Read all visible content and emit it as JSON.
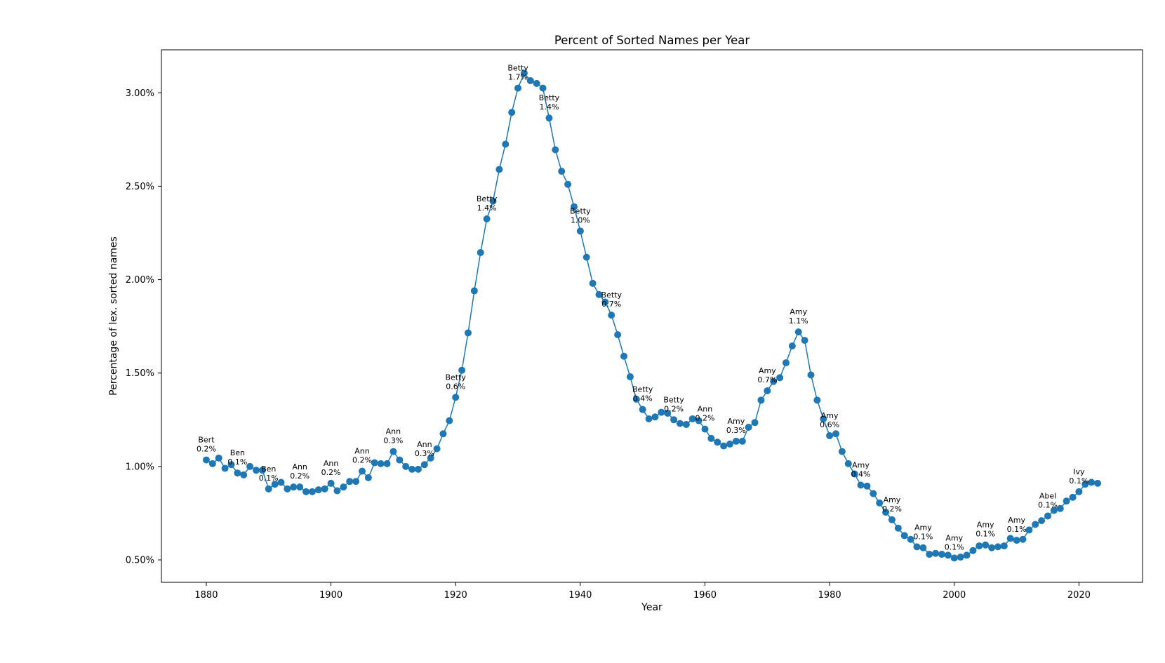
{
  "chart_data": {
    "type": "line",
    "title": "Percent of Sorted Names per Year",
    "xlabel": "Year",
    "ylabel": "Percentage of lex. sorted names",
    "xlim": [
      1872.8,
      2030.2
    ],
    "ylim": [
      0.38,
      3.23
    ],
    "x_ticks": [
      1880,
      1900,
      1920,
      1940,
      1960,
      1980,
      2000,
      2020
    ],
    "y_ticks": [
      0.5,
      1.0,
      1.5,
      2.0,
      2.5,
      3.0
    ],
    "y_tick_labels": [
      "0.50%",
      "1.00%",
      "1.50%",
      "2.00%",
      "2.50%",
      "3.00%"
    ],
    "grid": false,
    "marker": "circle",
    "line_color": "#1f77b4",
    "series": [
      {
        "x": [
          1880,
          1881,
          1882,
          1883,
          1884,
          1885,
          1886,
          1887,
          1888,
          1889,
          1890,
          1891,
          1892,
          1893,
          1894,
          1895,
          1896,
          1897,
          1898,
          1899,
          1900,
          1901,
          1902,
          1903,
          1904,
          1905,
          1906,
          1907,
          1908,
          1909,
          1910,
          1911,
          1912,
          1913,
          1914,
          1915,
          1916,
          1917,
          1918,
          1919,
          1920,
          1921,
          1922,
          1923,
          1924,
          1925,
          1926,
          1927,
          1928,
          1929,
          1930,
          1931,
          1932,
          1933,
          1934,
          1935,
          1936,
          1937,
          1938,
          1939,
          1940,
          1941,
          1942,
          1943,
          1944,
          1945,
          1946,
          1947,
          1948,
          1949,
          1950,
          1951,
          1952,
          1953,
          1954,
          1955,
          1956,
          1957,
          1958,
          1959,
          1960,
          1961,
          1962,
          1963,
          1964,
          1965,
          1966,
          1967,
          1968,
          1969,
          1970,
          1971,
          1972,
          1973,
          1974,
          1975,
          1976,
          1977,
          1978,
          1979,
          1980,
          1981,
          1982,
          1983,
          1984,
          1985,
          1986,
          1987,
          1988,
          1989,
          1990,
          1991,
          1992,
          1993,
          1994,
          1995,
          1996,
          1997,
          1998,
          1999,
          2000,
          2001,
          2002,
          2003,
          2004,
          2005,
          2006,
          2007,
          2008,
          2009,
          2010,
          2011,
          2012,
          2013,
          2014,
          2015,
          2016,
          2017,
          2018,
          2019,
          2020,
          2021,
          2022,
          2023
        ],
        "y": [
          1.035,
          1.015,
          1.045,
          0.99,
          1.01,
          0.965,
          0.955,
          1.0,
          0.98,
          0.98,
          0.88,
          0.905,
          0.915,
          0.88,
          0.89,
          0.89,
          0.865,
          0.865,
          0.875,
          0.88,
          0.91,
          0.87,
          0.89,
          0.92,
          0.92,
          0.975,
          0.94,
          1.02,
          1.015,
          1.015,
          1.08,
          1.035,
          1.0,
          0.985,
          0.985,
          1.01,
          1.045,
          1.095,
          1.175,
          1.245,
          1.37,
          1.515,
          1.715,
          1.94,
          2.145,
          2.325,
          2.42,
          2.59,
          2.725,
          2.895,
          3.025,
          3.105,
          3.065,
          3.05,
          3.025,
          2.865,
          2.695,
          2.58,
          2.51,
          2.39,
          2.26,
          2.12,
          1.98,
          1.92,
          1.88,
          1.81,
          1.705,
          1.59,
          1.48,
          1.36,
          1.305,
          1.255,
          1.265,
          1.29,
          1.285,
          1.25,
          1.23,
          1.225,
          1.255,
          1.245,
          1.2,
          1.15,
          1.13,
          1.11,
          1.12,
          1.135,
          1.135,
          1.21,
          1.235,
          1.355,
          1.405,
          1.455,
          1.475,
          1.555,
          1.645,
          1.72,
          1.675,
          1.49,
          1.355,
          1.255,
          1.165,
          1.175,
          1.08,
          1.015,
          0.96,
          0.9,
          0.895,
          0.855,
          0.805,
          0.755,
          0.715,
          0.67,
          0.63,
          0.61,
          0.57,
          0.565,
          0.53,
          0.535,
          0.53,
          0.525,
          0.51,
          0.515,
          0.525,
          0.55,
          0.575,
          0.58,
          0.565,
          0.57,
          0.575,
          0.615,
          0.605,
          0.61,
          0.66,
          0.69,
          0.71,
          0.735,
          0.765,
          0.775,
          0.815,
          0.835,
          0.865,
          0.905,
          0.915,
          0.91
        ]
      }
    ],
    "annotations": [
      {
        "name": "Bert",
        "pct": "0.2%",
        "x": 1880,
        "y": 1.035
      },
      {
        "name": "Ben",
        "pct": "0.1%",
        "x": 1885,
        "y": 0.965
      },
      {
        "name": "Ben",
        "pct": "0.1%",
        "x": 1890,
        "y": 0.88
      },
      {
        "name": "Ann",
        "pct": "0.2%",
        "x": 1895,
        "y": 0.89
      },
      {
        "name": "Ann",
        "pct": "0.2%",
        "x": 1900,
        "y": 0.91
      },
      {
        "name": "Ann",
        "pct": "0.2%",
        "x": 1905,
        "y": 0.975
      },
      {
        "name": "Ann",
        "pct": "0.3%",
        "x": 1910,
        "y": 1.08
      },
      {
        "name": "Ann",
        "pct": "0.3%",
        "x": 1915,
        "y": 1.01
      },
      {
        "name": "Betty",
        "pct": "0.6%",
        "x": 1920,
        "y": 1.37
      },
      {
        "name": "Betty",
        "pct": "1.4%",
        "x": 1925,
        "y": 2.325
      },
      {
        "name": "Betty",
        "pct": "1.7%",
        "x": 1930,
        "y": 3.025
      },
      {
        "name": "Betty",
        "pct": "1.4%",
        "x": 1935,
        "y": 2.865
      },
      {
        "name": "Betty",
        "pct": "1.0%",
        "x": 1940,
        "y": 2.26
      },
      {
        "name": "Betty",
        "pct": "0.7%",
        "x": 1945,
        "y": 1.81
      },
      {
        "name": "Betty",
        "pct": "0.4%",
        "x": 1950,
        "y": 1.305
      },
      {
        "name": "Betty",
        "pct": "0.2%",
        "x": 1955,
        "y": 1.25
      },
      {
        "name": "Ann",
        "pct": "0.2%",
        "x": 1960,
        "y": 1.2
      },
      {
        "name": "Amy",
        "pct": "0.3%",
        "x": 1965,
        "y": 1.135
      },
      {
        "name": "Amy",
        "pct": "0.7%",
        "x": 1970,
        "y": 1.405
      },
      {
        "name": "Amy",
        "pct": "1.1%",
        "x": 1975,
        "y": 1.72
      },
      {
        "name": "Amy",
        "pct": "0.6%",
        "x": 1980,
        "y": 1.165
      },
      {
        "name": "Amy",
        "pct": "0.4%",
        "x": 1985,
        "y": 0.9
      },
      {
        "name": "Amy",
        "pct": "0.2%",
        "x": 1990,
        "y": 0.715
      },
      {
        "name": "Amy",
        "pct": "0.1%",
        "x": 1995,
        "y": 0.565
      },
      {
        "name": "Amy",
        "pct": "0.1%",
        "x": 2000,
        "y": 0.51
      },
      {
        "name": "Amy",
        "pct": "0.1%",
        "x": 2005,
        "y": 0.58
      },
      {
        "name": "Amy",
        "pct": "0.1%",
        "x": 2010,
        "y": 0.605
      },
      {
        "name": "Abel",
        "pct": "0.1%",
        "x": 2015,
        "y": 0.735
      },
      {
        "name": "Ivy",
        "pct": "0.1%",
        "x": 2020,
        "y": 0.865
      }
    ]
  }
}
